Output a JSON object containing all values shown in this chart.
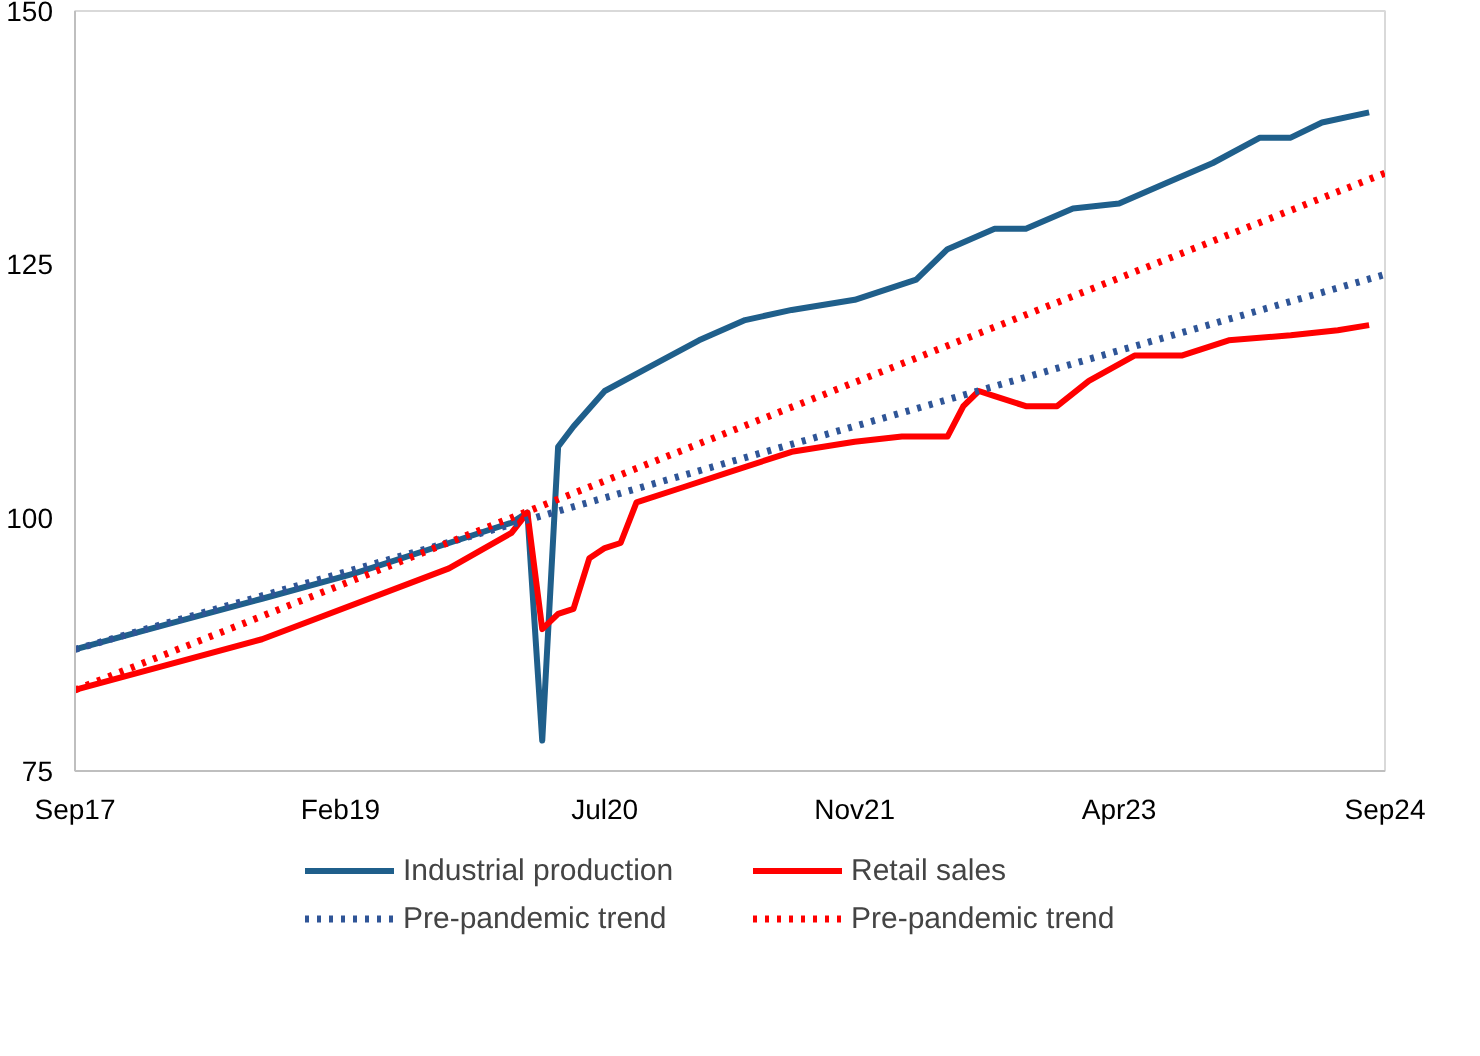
{
  "chart_data": {
    "type": "line",
    "xlim": [
      "2017-09",
      "2024-09"
    ],
    "xticks": [
      {
        "value": "2017-09",
        "label": "Sep17"
      },
      {
        "value": "2019-02",
        "label": "Feb19"
      },
      {
        "value": "2020-07",
        "label": "Jul20"
      },
      {
        "value": "2021-11",
        "label": "Nov21"
      },
      {
        "value": "2023-04",
        "label": "Apr23"
      },
      {
        "value": "2024-09",
        "label": "Sep24"
      }
    ],
    "ylim": [
      75,
      150
    ],
    "yticks": [
      75,
      100,
      125,
      150
    ],
    "grid": false,
    "legend": "bottom",
    "marker": "none",
    "series": [
      {
        "name": "Industrial production",
        "color": "#1f5f8b",
        "line_style": "solid",
        "x": [
          "2017-09",
          "2018-03",
          "2018-09",
          "2019-03",
          "2019-09",
          "2020-01",
          "2020-02",
          "2020-03",
          "2020-04",
          "2020-05",
          "2020-07",
          "2020-10",
          "2021-01",
          "2021-04",
          "2021-07",
          "2021-11",
          "2022-03",
          "2022-05",
          "2022-08",
          "2022-10",
          "2023-01",
          "2023-04",
          "2023-07",
          "2023-10",
          "2024-01",
          "2024-03",
          "2024-05",
          "2024-08"
        ],
        "values": [
          87,
          89.5,
          92,
          94.5,
          97.5,
          99.5,
          100.5,
          78,
          107,
          109,
          112.5,
          115,
          117.5,
          119.5,
          120.5,
          121.5,
          123.5,
          126.5,
          128.5,
          128.5,
          130.5,
          131,
          133,
          135,
          137.5,
          137.5,
          139,
          140
        ]
      },
      {
        "name": "Retail sales",
        "color": "#ff0000",
        "line_style": "solid",
        "x": [
          "2017-09",
          "2018-09",
          "2019-09",
          "2020-01",
          "2020-02",
          "2020-03",
          "2020-04",
          "2020-05",
          "2020-06",
          "2020-07",
          "2020-08",
          "2020-09",
          "2020-12",
          "2021-03",
          "2021-07",
          "2021-11",
          "2022-02",
          "2022-05",
          "2022-06",
          "2022-07",
          "2022-08",
          "2022-10",
          "2022-12",
          "2023-02",
          "2023-05",
          "2023-08",
          "2023-11",
          "2024-03",
          "2024-06",
          "2024-08"
        ],
        "values": [
          83,
          88,
          95,
          98.5,
          100.5,
          89,
          90.5,
          91,
          96,
          97,
          97.5,
          101.5,
          103,
          104.5,
          106.5,
          107.5,
          108,
          108,
          111,
          112.5,
          112,
          111,
          111,
          113.5,
          116,
          116,
          117.5,
          118,
          118.5,
          119
        ]
      },
      {
        "name": "Pre-pandemic trend",
        "color": "#2f5597",
        "line_style": "dotted",
        "x": [
          "2017-09",
          "2024-09"
        ],
        "values": [
          87,
          124
        ]
      },
      {
        "name": "Pre-pandemic trend",
        "color": "#ff0000",
        "line_style": "dotted",
        "x": [
          "2017-09",
          "2024-09"
        ],
        "values": [
          83,
          134
        ]
      }
    ]
  }
}
